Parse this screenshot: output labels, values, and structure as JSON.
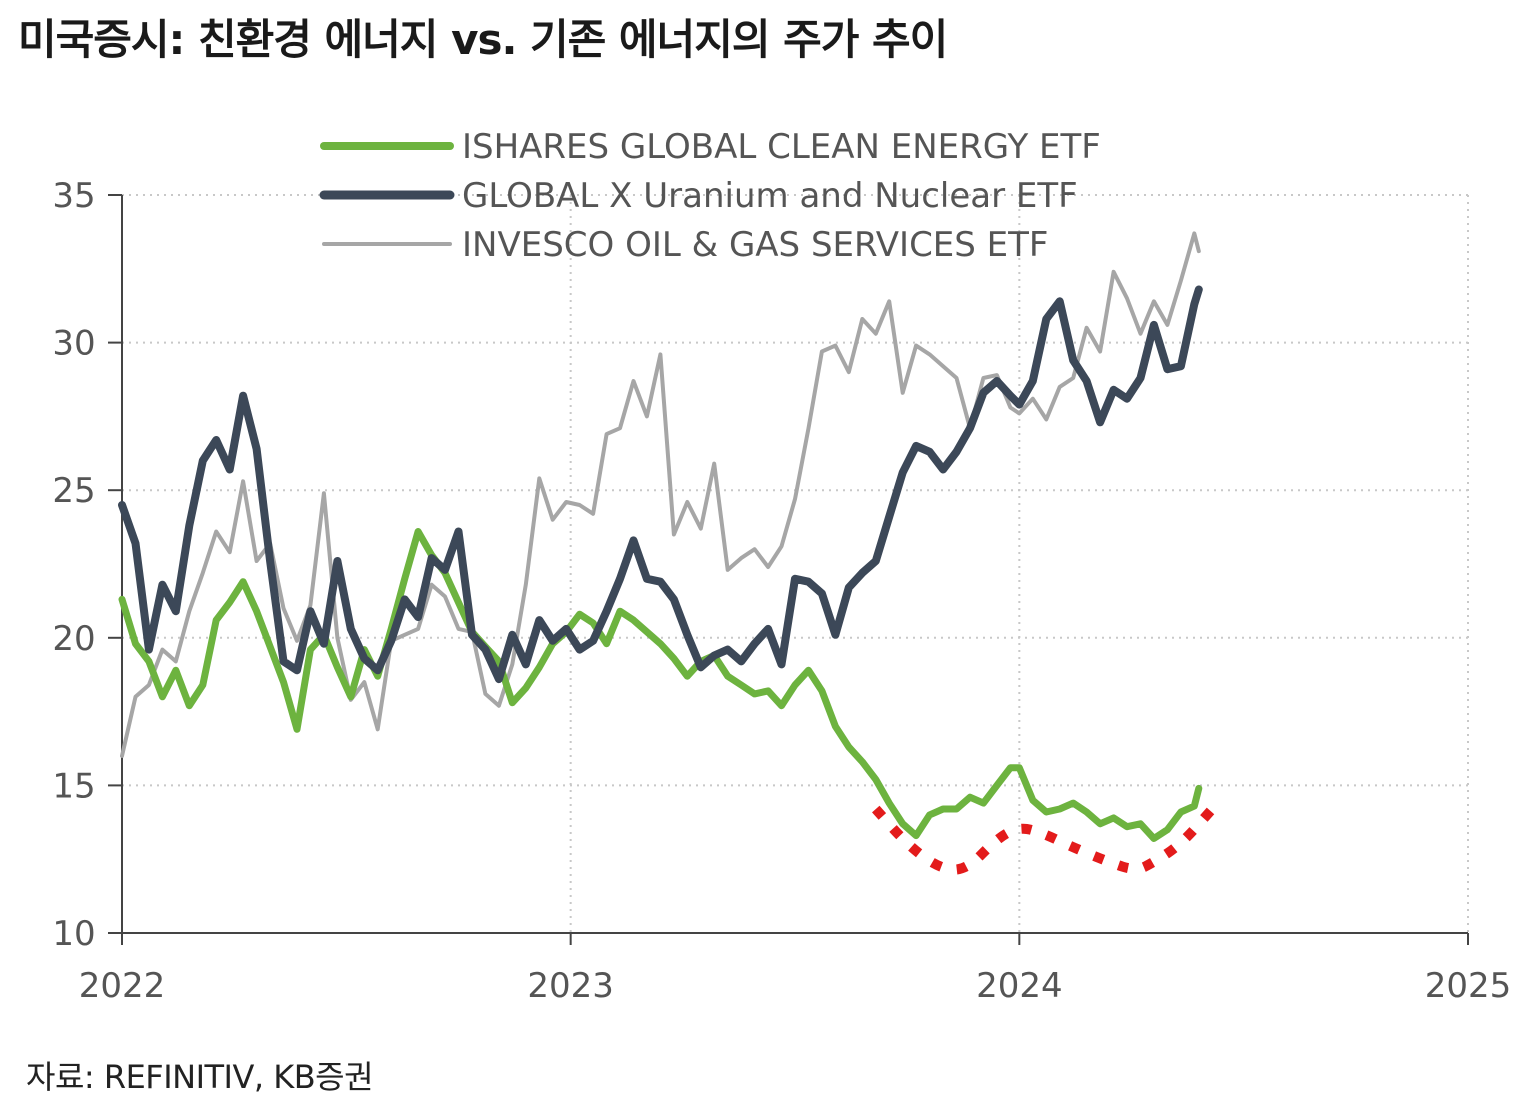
{
  "title": "미국증시: 친환경 에너지 vs. 기존 에너지의 주가 추이",
  "source": "자료: REFINITIV, KB증권",
  "chart_data": {
    "type": "line",
    "title": "미국증시: 친환경 에너지 vs. 기존 에너지의 주가 추이",
    "xlabel": "",
    "ylabel": "",
    "xlim": [
      2022.0,
      2025.0
    ],
    "ylim": [
      10,
      35
    ],
    "x_ticks": [
      2022,
      2023,
      2024,
      2025
    ],
    "x_tick_labels": [
      "2022",
      "2023",
      "2024",
      "2025"
    ],
    "y_ticks": [
      10,
      15,
      20,
      25,
      30,
      35
    ],
    "y_tick_labels": [
      "10",
      "15",
      "20",
      "25",
      "30",
      "35"
    ],
    "grid": true,
    "legend_position": "top-center",
    "colors": {
      "clean_energy": "#6db33f",
      "uranium": "#3c4858",
      "oil_gas": "#a6a6a6",
      "annotation": "#e31b1b"
    },
    "series": [
      {
        "name": "ISHARES GLOBAL CLEAN ENERGY ETF",
        "key": "clean_energy",
        "x": [
          2022.0,
          2022.03,
          2022.06,
          2022.09,
          2022.12,
          2022.15,
          2022.18,
          2022.21,
          2022.24,
          2022.27,
          2022.3,
          2022.33,
          2022.36,
          2022.39,
          2022.42,
          2022.45,
          2022.48,
          2022.51,
          2022.54,
          2022.57,
          2022.6,
          2022.63,
          2022.66,
          2022.69,
          2022.72,
          2022.75,
          2022.78,
          2022.81,
          2022.84,
          2022.87,
          2022.9,
          2022.93,
          2022.96,
          2022.99,
          2023.02,
          2023.05,
          2023.08,
          2023.11,
          2023.14,
          2023.17,
          2023.2,
          2023.23,
          2023.26,
          2023.29,
          2023.32,
          2023.35,
          2023.38,
          2023.41,
          2023.44,
          2023.47,
          2023.5,
          2023.53,
          2023.56,
          2023.59,
          2023.62,
          2023.65,
          2023.68,
          2023.71,
          2023.74,
          2023.77,
          2023.8,
          2023.83,
          2023.86,
          2023.89,
          2023.92,
          2023.95,
          2023.98,
          2024.0,
          2024.03,
          2024.06,
          2024.09,
          2024.12,
          2024.15,
          2024.18,
          2024.21,
          2024.24,
          2024.27,
          2024.3,
          2024.33,
          2024.36,
          2024.39,
          2024.4
        ],
        "y": [
          21.3,
          19.8,
          19.2,
          18.0,
          18.9,
          17.7,
          18.4,
          20.6,
          21.2,
          21.9,
          20.9,
          19.7,
          18.5,
          16.9,
          19.6,
          20.1,
          19.0,
          18.0,
          19.6,
          18.7,
          20.3,
          22.0,
          23.6,
          22.8,
          22.2,
          21.2,
          20.2,
          19.7,
          19.2,
          17.8,
          18.3,
          19.0,
          19.8,
          20.2,
          20.8,
          20.5,
          19.8,
          20.9,
          20.6,
          20.2,
          19.8,
          19.3,
          18.7,
          19.2,
          19.4,
          18.7,
          18.4,
          18.1,
          18.2,
          17.7,
          18.4,
          18.9,
          18.2,
          17.0,
          16.3,
          15.8,
          15.2,
          14.4,
          13.7,
          13.3,
          14.0,
          14.2,
          14.2,
          14.6,
          14.4,
          15.0,
          15.6,
          15.6,
          14.5,
          14.1,
          14.2,
          14.4,
          14.1,
          13.7,
          13.9,
          13.6,
          13.7,
          13.2,
          13.5,
          14.1,
          14.3,
          14.9
        ]
      },
      {
        "name": "GLOBAL X Uranium and Nuclear ETF",
        "key": "uranium",
        "x": [
          2022.0,
          2022.03,
          2022.06,
          2022.09,
          2022.12,
          2022.15,
          2022.18,
          2022.21,
          2022.24,
          2022.27,
          2022.3,
          2022.33,
          2022.36,
          2022.39,
          2022.42,
          2022.45,
          2022.48,
          2022.51,
          2022.54,
          2022.57,
          2022.6,
          2022.63,
          2022.66,
          2022.69,
          2022.72,
          2022.75,
          2022.78,
          2022.81,
          2022.84,
          2022.87,
          2022.9,
          2022.93,
          2022.96,
          2022.99,
          2023.02,
          2023.05,
          2023.08,
          2023.11,
          2023.14,
          2023.17,
          2023.2,
          2023.23,
          2023.26,
          2023.29,
          2023.32,
          2023.35,
          2023.38,
          2023.41,
          2023.44,
          2023.47,
          2023.5,
          2023.53,
          2023.56,
          2023.59,
          2023.62,
          2023.65,
          2023.68,
          2023.71,
          2023.74,
          2023.77,
          2023.8,
          2023.83,
          2023.86,
          2023.89,
          2023.92,
          2023.95,
          2023.98,
          2024.0,
          2024.03,
          2024.06,
          2024.09,
          2024.12,
          2024.15,
          2024.18,
          2024.21,
          2024.24,
          2024.27,
          2024.3,
          2024.33,
          2024.36,
          2024.39,
          2024.4
        ],
        "y": [
          24.5,
          23.2,
          19.6,
          21.8,
          20.9,
          23.8,
          26.0,
          26.7,
          25.7,
          28.2,
          26.4,
          22.6,
          19.2,
          18.9,
          20.9,
          19.8,
          22.6,
          20.3,
          19.3,
          18.9,
          19.9,
          21.3,
          20.7,
          22.7,
          22.3,
          23.6,
          20.1,
          19.6,
          18.6,
          20.1,
          19.1,
          20.6,
          19.9,
          20.3,
          19.6,
          19.9,
          20.9,
          22.0,
          23.3,
          22.0,
          21.9,
          21.3,
          20.1,
          19.0,
          19.4,
          19.6,
          19.2,
          19.8,
          20.3,
          19.1,
          22.0,
          21.9,
          21.5,
          20.1,
          21.7,
          22.2,
          22.6,
          24.1,
          25.6,
          26.5,
          26.3,
          25.7,
          26.3,
          27.1,
          28.3,
          28.7,
          28.2,
          27.9,
          28.7,
          30.8,
          31.4,
          29.4,
          28.7,
          27.3,
          28.4,
          28.1,
          28.8,
          30.6,
          29.1,
          29.2,
          31.3,
          31.8
        ]
      },
      {
        "name": "INVESCO OIL & GAS SERVICES ETF",
        "key": "oil_gas",
        "x": [
          2022.0,
          2022.03,
          2022.06,
          2022.09,
          2022.12,
          2022.15,
          2022.18,
          2022.21,
          2022.24,
          2022.27,
          2022.3,
          2022.33,
          2022.36,
          2022.39,
          2022.42,
          2022.45,
          2022.48,
          2022.51,
          2022.54,
          2022.57,
          2022.6,
          2022.63,
          2022.66,
          2022.69,
          2022.72,
          2022.75,
          2022.78,
          2022.81,
          2022.84,
          2022.87,
          2022.9,
          2022.93,
          2022.96,
          2022.99,
          2023.02,
          2023.05,
          2023.08,
          2023.11,
          2023.14,
          2023.17,
          2023.2,
          2023.23,
          2023.26,
          2023.29,
          2023.32,
          2023.35,
          2023.38,
          2023.41,
          2023.44,
          2023.47,
          2023.5,
          2023.53,
          2023.56,
          2023.59,
          2023.62,
          2023.65,
          2023.68,
          2023.71,
          2023.74,
          2023.77,
          2023.8,
          2023.83,
          2023.86,
          2023.89,
          2023.92,
          2023.95,
          2023.98,
          2024.0,
          2024.03,
          2024.06,
          2024.09,
          2024.12,
          2024.15,
          2024.18,
          2024.21,
          2024.24,
          2024.27,
          2024.3,
          2024.33,
          2024.36,
          2024.39,
          2024.4
        ],
        "y": [
          16.0,
          18.0,
          18.4,
          19.6,
          19.2,
          20.9,
          22.2,
          23.6,
          22.9,
          25.3,
          22.6,
          23.2,
          21.0,
          19.9,
          21.1,
          24.9,
          20.0,
          17.9,
          18.5,
          16.9,
          19.9,
          20.1,
          20.3,
          21.8,
          21.4,
          20.3,
          20.2,
          18.1,
          17.7,
          19.1,
          21.8,
          25.4,
          24.0,
          24.6,
          24.5,
          24.2,
          26.9,
          27.1,
          28.7,
          27.5,
          29.6,
          23.5,
          24.6,
          23.7,
          25.9,
          22.3,
          22.7,
          23.0,
          22.4,
          23.1,
          24.7,
          27.1,
          29.7,
          29.9,
          29.0,
          30.8,
          30.3,
          31.4,
          28.3,
          29.9,
          29.6,
          29.2,
          28.8,
          27.1,
          28.8,
          28.9,
          27.8,
          27.6,
          28.1,
          27.4,
          28.5,
          28.8,
          30.5,
          29.7,
          32.4,
          31.5,
          30.3,
          31.4,
          30.6,
          32.1,
          33.7,
          33.1
        ]
      }
    ],
    "annotation": {
      "style": "red dotted curve",
      "x": [
        2023.68,
        2023.75,
        2023.82,
        2023.88,
        2023.95,
        2024.0,
        2024.05,
        2024.12,
        2024.2,
        2024.26,
        2024.3,
        2024.36,
        2024.43
      ],
      "y": [
        14.2,
        13.0,
        12.2,
        12.1,
        13.2,
        13.6,
        13.4,
        12.9,
        12.4,
        12.1,
        12.4,
        13.0,
        14.2
      ]
    }
  }
}
